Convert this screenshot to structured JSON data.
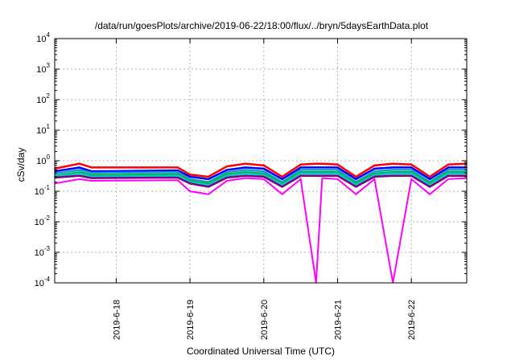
{
  "chart_data": {
    "type": "line",
    "title": "/data/run/goesPlots/archive/2019-06-22/18:00/flux/../bryn/5daysEarthData.plot",
    "xlabel": "Coordinated Universal Time (UTC)",
    "ylabel": "cSv/day",
    "yscale": "log",
    "ylim": [
      0.0001,
      10000
    ],
    "xlim": [
      "2019-06-17T04:00",
      "2019-06-22T18:00"
    ],
    "grid": true,
    "x_tick_labels": [
      "2019-6-18",
      "2019-6-19",
      "2019-6-20",
      "2019-6-21",
      "2019-6-22"
    ],
    "y_tick_labels": [
      {
        "base": "10",
        "exp": "4"
      },
      {
        "base": "10",
        "exp": "3"
      },
      {
        "base": "10",
        "exp": "2"
      },
      {
        "base": "10",
        "exp": "1"
      },
      {
        "base": "10",
        "exp": "0"
      },
      {
        "base": "10",
        "exp": "-1"
      },
      {
        "base": "10",
        "exp": "-2"
      },
      {
        "base": "10",
        "exp": "-3"
      },
      {
        "base": "10",
        "exp": "-4"
      }
    ],
    "x": [
      "2019-06-17T04:00",
      "2019-06-17T12:00",
      "2019-06-17T16:00",
      "2019-06-18T20:00",
      "2019-06-19T00:00",
      "2019-06-19T06:00",
      "2019-06-19T12:00",
      "2019-06-19T18:00",
      "2019-06-20T00:00",
      "2019-06-20T06:00",
      "2019-06-20T12:00",
      "2019-06-20T17:00",
      "2019-06-20T19:00",
      "2019-06-21T00:00",
      "2019-06-21T06:00",
      "2019-06-21T12:00",
      "2019-06-21T18:00",
      "2019-06-22T00:00",
      "2019-06-22T06:00",
      "2019-06-22T12:00",
      "2019-06-22T18:00"
    ],
    "series": [
      {
        "color": "#ff0000",
        "values": [
          0.55,
          0.8,
          0.6,
          0.6,
          0.35,
          0.3,
          0.65,
          0.8,
          0.7,
          0.3,
          0.75,
          0.8,
          0.8,
          0.75,
          0.3,
          0.7,
          0.8,
          0.75,
          0.3,
          0.75,
          0.8
        ]
      },
      {
        "color": "#0000ff",
        "values": [
          0.45,
          0.6,
          0.45,
          0.48,
          0.3,
          0.25,
          0.5,
          0.6,
          0.55,
          0.25,
          0.6,
          0.6,
          0.6,
          0.6,
          0.25,
          0.55,
          0.6,
          0.6,
          0.25,
          0.6,
          0.6
        ]
      },
      {
        "color": "#1a9bd0",
        "values": [
          0.38,
          0.5,
          0.4,
          0.42,
          0.25,
          0.2,
          0.42,
          0.5,
          0.45,
          0.2,
          0.5,
          0.5,
          0.5,
          0.5,
          0.2,
          0.45,
          0.5,
          0.5,
          0.2,
          0.5,
          0.5
        ]
      },
      {
        "color": "#00b050",
        "values": [
          0.32,
          0.42,
          0.34,
          0.36,
          0.22,
          0.18,
          0.36,
          0.42,
          0.38,
          0.18,
          0.42,
          0.42,
          0.42,
          0.42,
          0.18,
          0.38,
          0.42,
          0.42,
          0.18,
          0.42,
          0.42
        ]
      },
      {
        "color": "#00cccc",
        "values": [
          0.3,
          0.38,
          0.3,
          0.32,
          0.2,
          0.16,
          0.32,
          0.38,
          0.34,
          0.16,
          0.38,
          0.38,
          0.38,
          0.38,
          0.16,
          0.34,
          0.38,
          0.38,
          0.16,
          0.38,
          0.38
        ]
      },
      {
        "color": "#800080",
        "values": [
          0.28,
          0.32,
          0.27,
          0.28,
          0.18,
          0.14,
          0.28,
          0.32,
          0.3,
          0.14,
          0.32,
          0.32,
          0.32,
          0.32,
          0.14,
          0.3,
          0.32,
          0.32,
          0.14,
          0.32,
          0.32
        ]
      },
      {
        "color": "#ff00ff",
        "values": [
          0.18,
          0.25,
          0.22,
          0.23,
          0.1,
          0.08,
          0.22,
          0.27,
          0.25,
          0.08,
          0.25,
          0.0001,
          0.27,
          0.25,
          0.08,
          0.25,
          0.0001,
          0.25,
          0.08,
          0.25,
          0.27
        ]
      }
    ]
  }
}
